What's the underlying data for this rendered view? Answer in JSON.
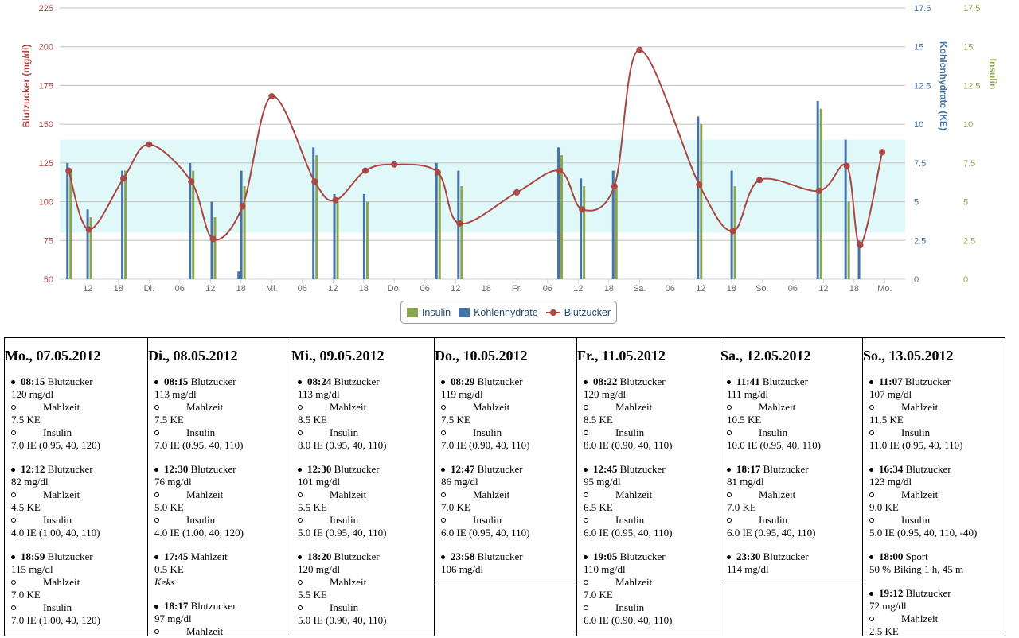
{
  "chart_data": {
    "type": "combo",
    "legend": [
      "Insulin",
      "Kohlenhydrate",
      "Blutzucker"
    ],
    "colors": {
      "insulin": "#89a54e",
      "carbs": "#4572a7",
      "bg": "#aa4643",
      "target": "#e0f8f8"
    },
    "axes": {
      "left": {
        "label": "Blutzucker (mg/dl)",
        "min": 50,
        "max": 225,
        "ticks": [
          "225",
          "200",
          "175",
          "150",
          "125",
          "100",
          "75",
          "50"
        ]
      },
      "right1": {
        "label": "Kohlenhydrate (KE)",
        "min": 0,
        "max": 17.5,
        "ticks": [
          "17.5",
          "15",
          "12.5",
          "10",
          "7.5",
          "5",
          "2.5",
          "0"
        ]
      },
      "right2": {
        "label": "Insulin",
        "min": 0,
        "max": 17.5,
        "ticks": [
          "17.5",
          "15",
          "12.5",
          "10",
          "7.5",
          "5",
          "2.5",
          "0"
        ]
      },
      "x_ticks": [
        "12",
        "18",
        "Di.",
        "06",
        "12",
        "18",
        "Mi.",
        "06",
        "12",
        "18",
        "Do.",
        "06",
        "12",
        "18",
        "Fr.",
        "06",
        "12",
        "18",
        "Sa.",
        "06",
        "12",
        "18",
        "So.",
        "06",
        "12",
        "18",
        "Mo."
      ]
    },
    "target_range": [
      80,
      140
    ],
    "x_range_hours": [
      6.5,
      172
    ],
    "blutzucker": [
      {
        "h": 8.25,
        "v": 120
      },
      {
        "h": 12.2,
        "v": 82
      },
      {
        "h": 18.98,
        "v": 115
      },
      {
        "h": 24,
        "v": 137
      },
      {
        "h": 32.25,
        "v": 113
      },
      {
        "h": 36.5,
        "v": 76
      },
      {
        "h": 42.28,
        "v": 97
      },
      {
        "h": 48,
        "v": 168
      },
      {
        "h": 56.4,
        "v": 113
      },
      {
        "h": 60.5,
        "v": 101
      },
      {
        "h": 66.33,
        "v": 120
      },
      {
        "h": 72,
        "v": 124
      },
      {
        "h": 80.48,
        "v": 119
      },
      {
        "h": 84.78,
        "v": 86
      },
      {
        "h": 95.97,
        "v": 106
      },
      {
        "h": 104.37,
        "v": 120
      },
      {
        "h": 108.75,
        "v": 95
      },
      {
        "h": 115.08,
        "v": 110
      },
      {
        "h": 120,
        "v": 198
      },
      {
        "h": 131.68,
        "v": 111
      },
      {
        "h": 138.28,
        "v": 81
      },
      {
        "h": 143.5,
        "v": 114
      },
      {
        "h": 155.12,
        "v": 107
      },
      {
        "h": 160.57,
        "v": 123
      },
      {
        "h": 163.2,
        "v": 72
      },
      {
        "h": 167.5,
        "v": 132
      }
    ],
    "kohlenhydrate": [
      {
        "h": 8.25,
        "v": 7.5
      },
      {
        "h": 12.2,
        "v": 4.5
      },
      {
        "h": 18.98,
        "v": 7.0
      },
      {
        "h": 32.25,
        "v": 7.5
      },
      {
        "h": 36.5,
        "v": 5.0
      },
      {
        "h": 41.75,
        "v": 0.5
      },
      {
        "h": 42.28,
        "v": 7.0
      },
      {
        "h": 56.4,
        "v": 8.5
      },
      {
        "h": 60.5,
        "v": 5.5
      },
      {
        "h": 66.33,
        "v": 5.5
      },
      {
        "h": 80.48,
        "v": 7.5
      },
      {
        "h": 84.78,
        "v": 7.0
      },
      {
        "h": 104.37,
        "v": 8.5
      },
      {
        "h": 108.75,
        "v": 6.5
      },
      {
        "h": 115.08,
        "v": 7.0
      },
      {
        "h": 131.68,
        "v": 10.5
      },
      {
        "h": 138.28,
        "v": 7.0
      },
      {
        "h": 155.12,
        "v": 11.5
      },
      {
        "h": 160.57,
        "v": 9.0
      },
      {
        "h": 163.2,
        "v": 2.5
      }
    ],
    "insulin": [
      {
        "h": 8.25,
        "v": 7.0
      },
      {
        "h": 12.2,
        "v": 4.0
      },
      {
        "h": 18.98,
        "v": 7.0
      },
      {
        "h": 32.25,
        "v": 7.0
      },
      {
        "h": 36.5,
        "v": 4.0
      },
      {
        "h": 42.28,
        "v": 6.0
      },
      {
        "h": 56.4,
        "v": 8.0
      },
      {
        "h": 60.5,
        "v": 5.0
      },
      {
        "h": 66.33,
        "v": 5.0
      },
      {
        "h": 80.48,
        "v": 7.0
      },
      {
        "h": 84.78,
        "v": 6.0
      },
      {
        "h": 104.37,
        "v": 8.0
      },
      {
        "h": 108.75,
        "v": 6.0
      },
      {
        "h": 115.08,
        "v": 6.0
      },
      {
        "h": 131.68,
        "v": 10.0
      },
      {
        "h": 138.28,
        "v": 6.0
      },
      {
        "h": 155.12,
        "v": 11.0
      },
      {
        "h": 160.57,
        "v": 5.0
      }
    ]
  },
  "days": [
    {
      "title": "Mo., 07.05.2012",
      "entries": [
        {
          "time": "08:15",
          "kind": "Blutzucker",
          "value": "120 mg/dl",
          "subs": [
            {
              "label": "Mahlzeit",
              "value": "7.5 KE"
            },
            {
              "label": "Insulin",
              "value": "7.0 IE (0.95, 40, 120)"
            }
          ]
        },
        {
          "time": "12:12",
          "kind": "Blutzucker",
          "value": "82 mg/dl",
          "subs": [
            {
              "label": "Mahlzeit",
              "value": "4.5 KE"
            },
            {
              "label": "Insulin",
              "value": "4.0 IE (1.00, 40, 110)"
            }
          ]
        },
        {
          "time": "18:59",
          "kind": "Blutzucker",
          "value": "115 mg/dl",
          "subs": [
            {
              "label": "Mahlzeit",
              "value": "7.0 KE"
            },
            {
              "label": "Insulin",
              "value": "7.0 IE (1.00, 40, 120)"
            }
          ]
        }
      ]
    },
    {
      "title": "Di., 08.05.2012",
      "entries": [
        {
          "time": "08:15",
          "kind": "Blutzucker",
          "value": "113 mg/dl",
          "subs": [
            {
              "label": "Mahlzeit",
              "value": "7.5 KE"
            },
            {
              "label": "Insulin",
              "value": "7.0 IE (0.95, 40, 110)"
            }
          ]
        },
        {
          "time": "12:30",
          "kind": "Blutzucker",
          "value": "76 mg/dl",
          "subs": [
            {
              "label": "Mahlzeit",
              "value": "5.0 KE"
            },
            {
              "label": "Insulin",
              "value": "4.0 IE (1.00, 40, 120)"
            }
          ]
        },
        {
          "time": "17:45",
          "kind": "Mahlzeit",
          "value": "0.5 KE",
          "note": "Keks",
          "subs": []
        },
        {
          "time": "18:17",
          "kind": "Blutzucker",
          "value": "97 mg/dl",
          "subs": [
            {
              "label": "Mahlzeit",
              "value": ""
            }
          ]
        }
      ]
    },
    {
      "title": "Mi., 09.05.2012",
      "entries": [
        {
          "time": "08:24",
          "kind": "Blutzucker",
          "value": "113 mg/dl",
          "subs": [
            {
              "label": "Mahlzeit",
              "value": "8.5 KE"
            },
            {
              "label": "Insulin",
              "value": "8.0 IE (0.95, 40, 110)"
            }
          ]
        },
        {
          "time": "12:30",
          "kind": "Blutzucker",
          "value": "101 mg/dl",
          "subs": [
            {
              "label": "Mahlzeit",
              "value": "5.5 KE"
            },
            {
              "label": "Insulin",
              "value": "5.0 IE (0.95, 40, 110)"
            }
          ]
        },
        {
          "time": "18:20",
          "kind": "Blutzucker",
          "value": "120 mg/dl",
          "subs": [
            {
              "label": "Mahlzeit",
              "value": "5.5 KE"
            },
            {
              "label": "Insulin",
              "value": "5.0 IE (0.90, 40, 110)"
            }
          ]
        }
      ]
    },
    {
      "title": "Do., 10.05.2012",
      "entries": [
        {
          "time": "08:29",
          "kind": "Blutzucker",
          "value": "119 mg/dl",
          "subs": [
            {
              "label": "Mahlzeit",
              "value": "7.5 KE"
            },
            {
              "label": "Insulin",
              "value": "7.0 IE (0.90, 40, 110)"
            }
          ]
        },
        {
          "time": "12:47",
          "kind": "Blutzucker",
          "value": "86 mg/dl",
          "subs": [
            {
              "label": "Mahlzeit",
              "value": "7.0 KE"
            },
            {
              "label": "Insulin",
              "value": "6.0 IE (0.95, 40, 110)"
            }
          ]
        },
        {
          "time": "23:58",
          "kind": "Blutzucker",
          "value": "106 mg/dl",
          "subs": []
        }
      ]
    },
    {
      "title": "Fr., 11.05.2012",
      "entries": [
        {
          "time": "08:22",
          "kind": "Blutzucker",
          "value": "120 mg/dl",
          "subs": [
            {
              "label": "Mahlzeit",
              "value": "8.5 KE"
            },
            {
              "label": "Insulin",
              "value": "8.0 IE (0.90, 40, 110)"
            }
          ]
        },
        {
          "time": "12:45",
          "kind": "Blutzucker",
          "value": "95 mg/dl",
          "subs": [
            {
              "label": "Mahlzeit",
              "value": "6.5 KE"
            },
            {
              "label": "Insulin",
              "value": "6.0 IE (0.95, 40, 110)"
            }
          ]
        },
        {
          "time": "19:05",
          "kind": "Blutzucker",
          "value": "110 mg/dl",
          "subs": [
            {
              "label": "Mahlzeit",
              "value": "7.0 KE"
            },
            {
              "label": "Insulin",
              "value": "6.0 IE (0.90, 40, 110)"
            }
          ]
        }
      ]
    },
    {
      "title": "Sa., 12.05.2012",
      "entries": [
        {
          "time": "11:41",
          "kind": "Blutzucker",
          "value": "111 mg/dl",
          "subs": [
            {
              "label": "Mahlzeit",
              "value": "10.5 KE"
            },
            {
              "label": "Insulin",
              "value": "10.0 IE (0.95, 40, 110)"
            }
          ]
        },
        {
          "time": "18:17",
          "kind": "Blutzucker",
          "value": "81 mg/dl",
          "subs": [
            {
              "label": "Mahlzeit",
              "value": "7.0 KE"
            },
            {
              "label": "Insulin",
              "value": "6.0 IE (0.95, 40, 110)"
            }
          ]
        },
        {
          "time": "23:30",
          "kind": "Blutzucker",
          "value": "114 mg/dl",
          "subs": []
        }
      ]
    },
    {
      "title": "So., 13.05.2012",
      "entries": [
        {
          "time": "11:07",
          "kind": "Blutzucker",
          "value": "107 mg/dl",
          "subs": [
            {
              "label": "Mahlzeit",
              "value": "11.5 KE"
            },
            {
              "label": "Insulin",
              "value": "11.0 IE (0.95, 40, 110)"
            }
          ]
        },
        {
          "time": "16:34",
          "kind": "Blutzucker",
          "value": "123 mg/dl",
          "subs": [
            {
              "label": "Mahlzeit",
              "value": "9.0 KE"
            },
            {
              "label": "Insulin",
              "value": "5.0 IE (0.95, 40, 110, -40)"
            }
          ]
        },
        {
          "time": "18:00",
          "kind": "Sport",
          "value": "50 % Biking 1 h, 45 m",
          "subs": []
        },
        {
          "time": "19:12",
          "kind": "Blutzucker",
          "value": "72 mg/dl",
          "subs": [
            {
              "label": "Mahlzeit",
              "value": "2.5 KE"
            }
          ]
        }
      ]
    }
  ]
}
